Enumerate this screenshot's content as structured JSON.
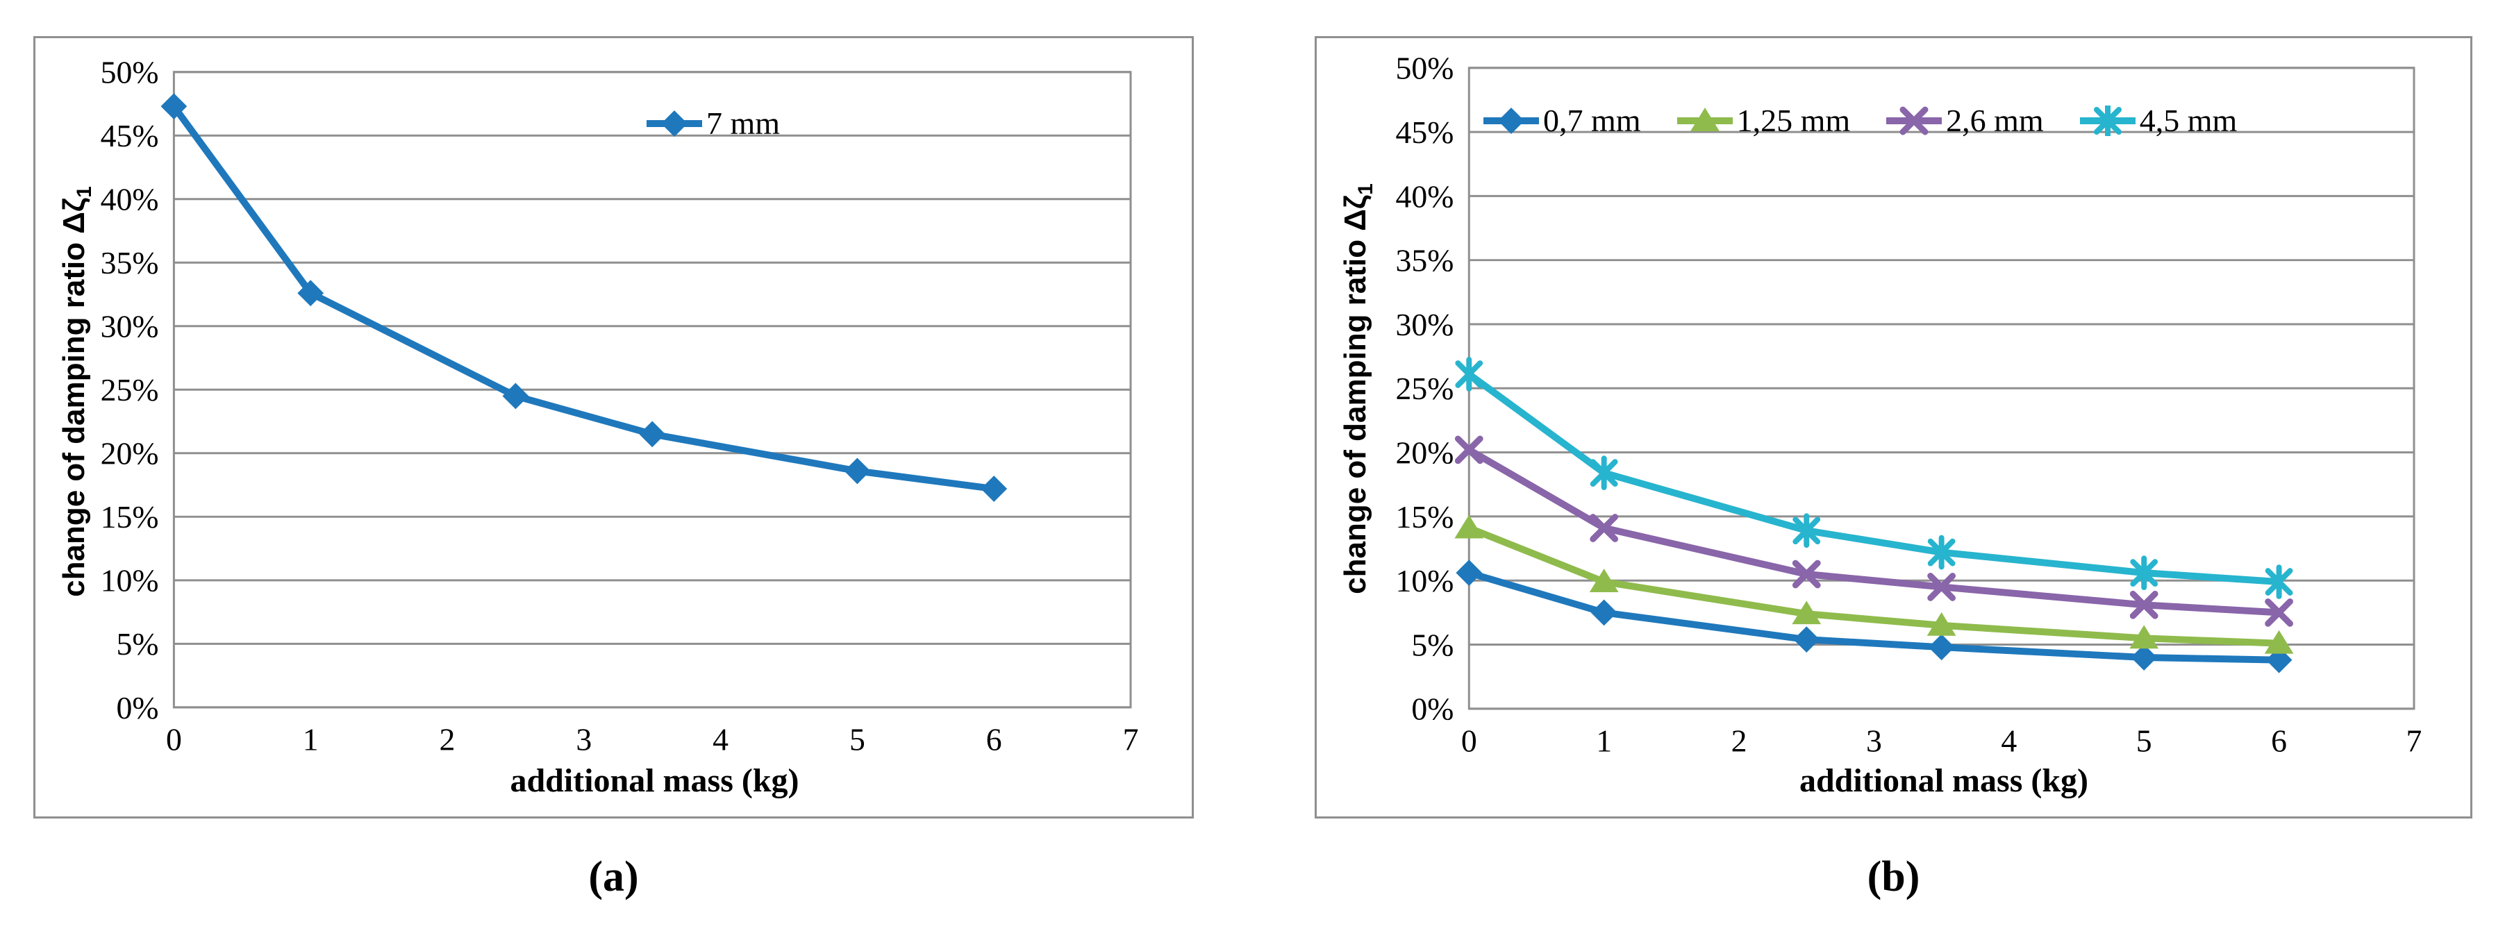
{
  "chart_data": [
    {
      "id": "a",
      "type": "line",
      "x": [
        0,
        1,
        2.5,
        3.5,
        5,
        6
      ],
      "series": [
        {
          "name": "7 mm",
          "marker": "diamond",
          "color": "#1F78BC",
          "values": [
            47.3,
            32.6,
            24.5,
            21.5,
            18.6,
            17.2
          ]
        }
      ],
      "xlabel": "additional mass (kg)",
      "ylabel_main": "change of damping ratio Δζ",
      "ylabel_sub": "1",
      "xlim": [
        0,
        7
      ],
      "ylim_percent": [
        0,
        50
      ],
      "y_tick_labels": [
        "0%",
        "5%",
        "10%",
        "15%",
        "20%",
        "25%",
        "30%",
        "35%",
        "40%",
        "45%",
        "50%"
      ],
      "x_tick_labels": [
        "0",
        "1",
        "2",
        "3",
        "4",
        "5",
        "6",
        "7"
      ],
      "grid": "horizontal",
      "legend_position": "top-center-inside"
    },
    {
      "id": "b",
      "type": "line",
      "x": [
        0,
        1,
        2.5,
        3.5,
        5,
        6
      ],
      "series": [
        {
          "name": "0,7 mm",
          "marker": "diamond",
          "color": "#1F78BC",
          "values": [
            10.6,
            7.5,
            5.4,
            4.8,
            4.0,
            3.8
          ]
        },
        {
          "name": "1,25 mm",
          "marker": "triangle",
          "color": "#8FBB4C",
          "values": [
            14.1,
            9.9,
            7.4,
            6.5,
            5.5,
            5.1
          ]
        },
        {
          "name": "2,6 mm",
          "marker": "x",
          "color": "#8965A9",
          "values": [
            20.2,
            14.1,
            10.5,
            9.5,
            8.1,
            7.5
          ]
        },
        {
          "name": "4,5 mm",
          "marker": "asterisk",
          "color": "#27B4CE",
          "values": [
            26.1,
            18.4,
            13.9,
            12.2,
            10.6,
            9.9
          ]
        }
      ],
      "xlabel": "additional mass (kg)",
      "ylabel_main": "change of damping ratio Δζ",
      "ylabel_sub": "1",
      "xlim": [
        0,
        7
      ],
      "ylim_percent": [
        0,
        50
      ],
      "y_tick_labels": [
        "0%",
        "5%",
        "10%",
        "15%",
        "20%",
        "25%",
        "30%",
        "35%",
        "40%",
        "45%",
        "50%"
      ],
      "x_tick_labels": [
        "0",
        "1",
        "2",
        "3",
        "4",
        "5",
        "6",
        "7"
      ],
      "grid": "horizontal",
      "legend_position": "top-left-inside-row"
    }
  ],
  "captions": [
    {
      "label": "(a)"
    },
    {
      "label": "(b)"
    }
  ],
  "style": {
    "grid_color": "#8f8f8f",
    "text_color": "#000000"
  }
}
